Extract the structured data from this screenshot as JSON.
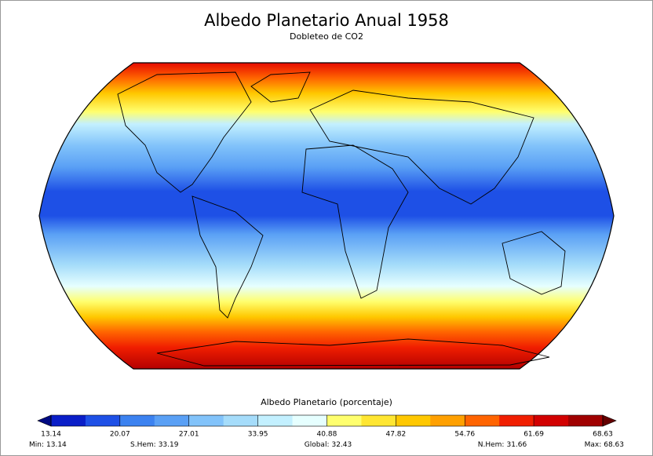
{
  "title": "Albedo Planetario Anual 1958",
  "subtitle": "Dobleteo de CO2",
  "colorbar": {
    "label": "Albedo Planetario (porcentaje)",
    "ticks": [
      13.14,
      20.07,
      27.01,
      33.95,
      40.88,
      47.82,
      54.76,
      61.69,
      68.63
    ],
    "colors": [
      "#0a1ec8",
      "#1e50e6",
      "#3c82f0",
      "#5aa0f5",
      "#82c3fa",
      "#a5dcfa",
      "#c3f0ff",
      "#e6ffff",
      "#ffff6e",
      "#ffe632",
      "#ffc800",
      "#ffa000",
      "#ff6400",
      "#f01e00",
      "#d20000",
      "#a00000"
    ],
    "under_color": "#000a82",
    "over_color": "#640000"
  },
  "stats": [
    {
      "label": "Min:",
      "value": 13.14
    },
    {
      "label": "S.Hem:",
      "value": 33.19
    },
    {
      "label": "Global:",
      "value": 32.43
    },
    {
      "label": "N.Hem:",
      "value": 31.66
    },
    {
      "label": "Max:",
      "value": 68.63
    }
  ]
}
